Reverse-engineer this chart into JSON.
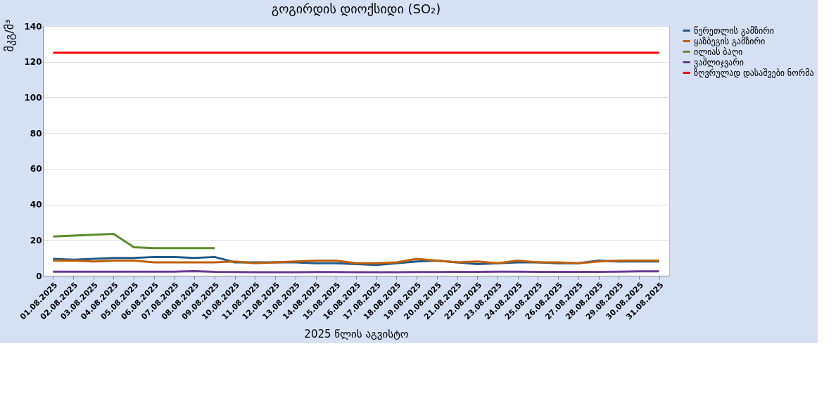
{
  "chart_data": {
    "type": "line",
    "title": "გოგირდის დიოქსიდი (SO₂)",
    "xlabel": "2025 წლის აგვისტო",
    "ylabel": "მკგ/მ³",
    "categories": [
      "01.08.2025",
      "02.08.2025",
      "03.08.2025",
      "04.08.2025",
      "05.08.2025",
      "06.08.2025",
      "07.08.2025",
      "08.08.2025",
      "09.08.2025",
      "10.08.2025",
      "11.08.2025",
      "12.08.2025",
      "13.08.2025",
      "14.08.2025",
      "15.08.2025",
      "16.08.2025",
      "17.08.2025",
      "18.08.2025",
      "19.08.2025",
      "20.08.2025",
      "21.08.2025",
      "22.08.2025",
      "23.08.2025",
      "24.08.2025",
      "25.08.2025",
      "26.08.2025",
      "27.08.2025",
      "28.08.2025",
      "29.08.2025",
      "30.08.2025",
      "31.08.2025"
    ],
    "series": [
      {
        "name": "წერეთლის გამზირი",
        "color": "#1f5a8a",
        "values": [
          9.5,
          9,
          9.5,
          10,
          10,
          10.5,
          10.5,
          10,
          10.5,
          7.5,
          7.5,
          7.5,
          7.5,
          7,
          7,
          6.5,
          6,
          7,
          8,
          8.5,
          7.5,
          6.5,
          7,
          7.5,
          7.5,
          7,
          7,
          8.5,
          8,
          8,
          8
        ]
      },
      {
        "name": "ყაზბეგის გამზირი",
        "color": "#c0600a",
        "values": [
          8.5,
          8.5,
          8,
          8.5,
          8.5,
          7.5,
          7.5,
          7.5,
          7.5,
          8,
          7,
          7.5,
          8,
          8.5,
          8.5,
          7,
          7,
          7.5,
          9.5,
          8.5,
          7.5,
          8,
          7,
          8.5,
          7.5,
          7.5,
          7,
          8,
          8.5,
          8.5,
          8.5
        ]
      },
      {
        "name": "ილიას ბაღი",
        "color": "#5b8c2a",
        "values": [
          22,
          22.5,
          23,
          23.5,
          16,
          15.5,
          15.5,
          15.5,
          15.5,
          null,
          null,
          null,
          null,
          null,
          null,
          null,
          null,
          null,
          null,
          null,
          null,
          null,
          null,
          null,
          null,
          null,
          null,
          null,
          null,
          null,
          null
        ]
      },
      {
        "name": "ვაშლიჯვარი",
        "color": "#6a3a8f",
        "values": [
          2.3,
          2.3,
          2.3,
          2.3,
          2.3,
          2.3,
          2.3,
          2.6,
          2.2,
          2.1,
          2,
          2,
          2,
          2.1,
          2.1,
          2,
          2,
          2,
          2.1,
          2.1,
          2.2,
          2.2,
          2.3,
          2.3,
          2.2,
          2.2,
          2.2,
          2.2,
          2.3,
          2.5,
          2.5
        ]
      },
      {
        "name": "ზღვრულად დასაშვები ნორმა",
        "color": "#ff0000",
        "values": [
          125,
          125,
          125,
          125,
          125,
          125,
          125,
          125,
          125,
          125,
          125,
          125,
          125,
          125,
          125,
          125,
          125,
          125,
          125,
          125,
          125,
          125,
          125,
          125,
          125,
          125,
          125,
          125,
          125,
          125,
          125
        ]
      }
    ],
    "ylim": [
      0,
      140
    ],
    "yticks": [
      0,
      20,
      40,
      60,
      80,
      100,
      120,
      140
    ],
    "grid": "y",
    "legend": "right",
    "marker": "none",
    "line_style": "solid"
  }
}
